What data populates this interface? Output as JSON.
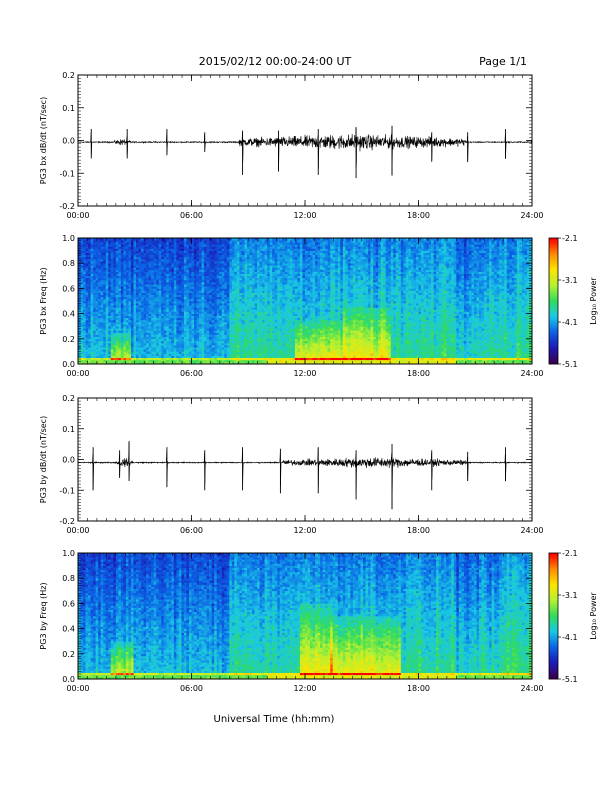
{
  "header": {
    "date_range": "2015/02/12  00:00-24:00 UT",
    "page": "Page 1/1"
  },
  "xlabel": "Universal Time (hh:mm)",
  "colors": {
    "trace": "#000000",
    "colormap": [
      "#3a0050",
      "#1a1ab8",
      "#0a64e6",
      "#19c8e6",
      "#32dc5a",
      "#b4f032",
      "#fae600",
      "#ff8c00",
      "#ff0000"
    ]
  },
  "chart_data": [
    {
      "type": "line",
      "ylabel": "PG3 bx dB/dt (nT/sec)",
      "xlim": [
        0,
        24
      ],
      "ylim": [
        -0.2,
        0.2
      ],
      "yticks": [
        "0.2",
        "0.1",
        "0.0",
        "-0.1",
        "-0.2"
      ],
      "xticks": [
        "00:00",
        "06:00",
        "12:00",
        "18:00",
        "24:00"
      ],
      "baseline": -0.005,
      "spikes": [
        {
          "t": 0.7,
          "up": 0.04,
          "down": -0.05
        },
        {
          "t": 2.6,
          "up": 0.04,
          "down": -0.05
        },
        {
          "t": 4.7,
          "up": 0.04,
          "down": -0.04
        },
        {
          "t": 6.7,
          "up": 0.03,
          "down": -0.03
        },
        {
          "t": 8.7,
          "up": 0.035,
          "down": -0.1
        },
        {
          "t": 10.6,
          "up": 0.035,
          "down": -0.09
        },
        {
          "t": 12.7,
          "up": 0.04,
          "down": -0.1
        },
        {
          "t": 14.7,
          "up": 0.045,
          "down": -0.11
        },
        {
          "t": 16.6,
          "up": 0.05,
          "down": -0.1
        },
        {
          "t": 18.7,
          "up": 0.03,
          "down": -0.06
        },
        {
          "t": 20.6,
          "up": 0.03,
          "down": -0.06
        },
        {
          "t": 22.6,
          "up": 0.04,
          "down": -0.05
        }
      ],
      "activity": [
        {
          "t0": 1.9,
          "t1": 2.8,
          "amp": 0.015
        },
        {
          "t0": 8.5,
          "t1": 20.5,
          "amp": 0.035
        }
      ]
    },
    {
      "type": "heatmap",
      "ylabel": "PG3 bx Freq (Hz)",
      "xlim": [
        0,
        24
      ],
      "ylim": [
        0,
        1
      ],
      "yticks": [
        "1.0",
        "0.8",
        "0.6",
        "0.4",
        "0.2",
        "0.0"
      ],
      "xticks": [
        "00:00",
        "06:00",
        "12:00",
        "18:00",
        "24:00"
      ],
      "colorbar": {
        "label": "Log₁₀ Power",
        "range": [
          -5.1,
          -2.1
        ],
        "ticks": [
          "-2.1",
          "-3.1",
          "-4.1",
          "-5.1"
        ]
      },
      "bursts": [
        {
          "t0": 1.8,
          "t1": 2.8,
          "fmax": 0.25
        },
        {
          "t0": 11.5,
          "t1": 14.0,
          "fmax": 0.35
        },
        {
          "t0": 14.0,
          "t1": 16.5,
          "fmax": 0.45
        }
      ]
    },
    {
      "type": "line",
      "ylabel": "PG3 by dB/dt (nT/sec)",
      "xlim": [
        0,
        24
      ],
      "ylim": [
        -0.2,
        0.2
      ],
      "yticks": [
        "0.2",
        "0.1",
        "0.0",
        "-0.1",
        "-0.2"
      ],
      "xticks": [
        "00:00",
        "06:00",
        "12:00",
        "18:00",
        "24:00"
      ],
      "baseline": -0.01,
      "spikes": [
        {
          "t": 0.8,
          "up": 0.05,
          "down": -0.09
        },
        {
          "t": 2.2,
          "up": 0.04,
          "down": -0.05
        },
        {
          "t": 2.7,
          "up": 0.07,
          "down": -0.06
        },
        {
          "t": 4.7,
          "up": 0.05,
          "down": -0.08
        },
        {
          "t": 6.7,
          "up": 0.04,
          "down": -0.09
        },
        {
          "t": 8.7,
          "up": 0.05,
          "down": -0.09
        },
        {
          "t": 10.7,
          "up": 0.045,
          "down": -0.1
        },
        {
          "t": 12.7,
          "up": 0.05,
          "down": -0.1
        },
        {
          "t": 14.7,
          "up": 0.04,
          "down": -0.12
        },
        {
          "t": 16.6,
          "up": 0.06,
          "down": -0.15
        },
        {
          "t": 18.7,
          "up": 0.04,
          "down": -0.09
        },
        {
          "t": 20.6,
          "up": 0.035,
          "down": -0.06
        },
        {
          "t": 22.6,
          "up": 0.05,
          "down": -0.06
        }
      ],
      "activity": [
        {
          "t0": 2.0,
          "t1": 2.9,
          "amp": 0.02
        },
        {
          "t0": 10.8,
          "t1": 20.5,
          "amp": 0.025
        }
      ]
    },
    {
      "type": "heatmap",
      "ylabel": "PG3 by Freq (Hz)",
      "xlim": [
        0,
        24
      ],
      "ylim": [
        0,
        1
      ],
      "yticks": [
        "1.0",
        "0.8",
        "0.6",
        "0.4",
        "0.2",
        "0.0"
      ],
      "xticks": [
        "00:00",
        "06:00",
        "12:00",
        "18:00",
        "24:00"
      ],
      "colorbar": {
        "label": "Log₁₀ Power",
        "range": [
          -5.1,
          -2.1
        ],
        "ticks": [
          "-2.1",
          "-3.1",
          "-4.1",
          "-5.1"
        ]
      },
      "bursts": [
        {
          "t0": 1.8,
          "t1": 2.9,
          "fmax": 0.3
        },
        {
          "t0": 11.8,
          "t1": 13.4,
          "fmax": 0.6
        },
        {
          "t0": 13.4,
          "t1": 17.0,
          "fmax": 0.5
        }
      ]
    }
  ]
}
